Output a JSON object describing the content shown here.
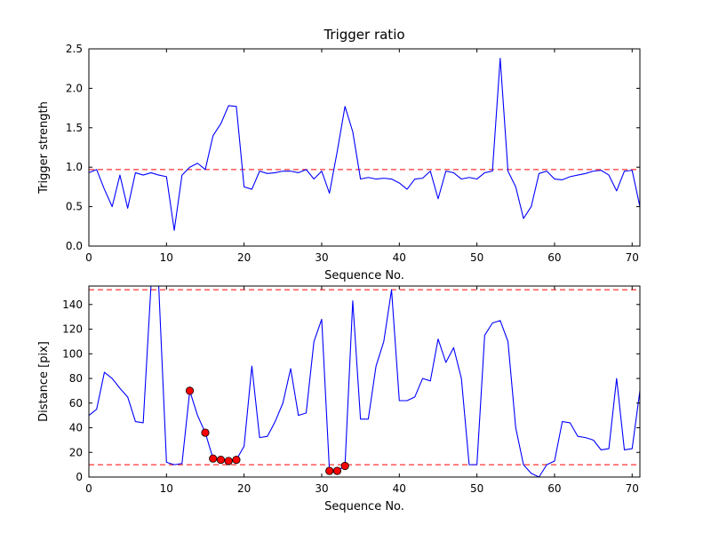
{
  "figure": {
    "background": "#ffffff",
    "axes_color": "#000000",
    "line_color": "#0000ff",
    "threshold_color": "#ff0000",
    "marker_color": "#ff0000"
  },
  "chart_data": [
    {
      "type": "line",
      "title": "Trigger ratio",
      "xlabel": "Sequence No.",
      "ylabel": "Trigger strength",
      "xlim": [
        0,
        71
      ],
      "ylim": [
        0,
        2.5
      ],
      "xticks": [
        0,
        10,
        20,
        30,
        40,
        50,
        60,
        70
      ],
      "xtick_labels": [
        "0",
        "10",
        "20",
        "30",
        "40",
        "50",
        "60",
        "70"
      ],
      "yticks": [
        0.0,
        0.5,
        1.0,
        1.5,
        2.0,
        2.5
      ],
      "ytick_labels": [
        "0.0",
        "0.5",
        "1.0",
        "1.5",
        "2.0",
        "2.5"
      ],
      "grid": false,
      "legend": null,
      "line_color": "#0000ff",
      "thresholds": [
        {
          "y": 0.97,
          "color": "#ff0000",
          "style": "dashed"
        }
      ],
      "x": [
        0,
        1,
        2,
        3,
        4,
        5,
        6,
        7,
        8,
        9,
        10,
        11,
        12,
        13,
        14,
        15,
        16,
        17,
        18,
        19,
        20,
        21,
        22,
        23,
        24,
        25,
        26,
        27,
        28,
        29,
        30,
        31,
        32,
        33,
        34,
        35,
        36,
        37,
        38,
        39,
        40,
        41,
        42,
        43,
        44,
        45,
        46,
        47,
        48,
        49,
        50,
        51,
        52,
        53,
        54,
        55,
        56,
        57,
        58,
        59,
        60,
        61,
        62,
        63,
        64,
        65,
        66,
        67,
        68,
        69,
        70,
        71
      ],
      "y": [
        0.93,
        0.97,
        0.72,
        0.5,
        0.9,
        0.48,
        0.93,
        0.9,
        0.93,
        0.9,
        0.88,
        0.2,
        0.9,
        1.0,
        1.05,
        0.97,
        1.4,
        1.55,
        1.78,
        1.77,
        0.75,
        0.72,
        0.95,
        0.92,
        0.93,
        0.95,
        0.95,
        0.93,
        0.97,
        0.85,
        0.95,
        0.67,
        1.2,
        1.77,
        1.45,
        0.85,
        0.87,
        0.85,
        0.86,
        0.85,
        0.8,
        0.72,
        0.85,
        0.86,
        0.95,
        0.6,
        0.95,
        0.93,
        0.85,
        0.87,
        0.85,
        0.93,
        0.95,
        2.38,
        0.95,
        0.75,
        0.35,
        0.5,
        0.92,
        0.95,
        0.85,
        0.84,
        0.88,
        0.9,
        0.92,
        0.95,
        0.96,
        0.9,
        0.7,
        0.95,
        0.96,
        0.5
      ]
    },
    {
      "type": "line",
      "title": "",
      "xlabel": "Sequence No.",
      "ylabel": "Distance [pix]",
      "xlim": [
        0,
        71
      ],
      "ylim": [
        0,
        155
      ],
      "xticks": [
        0,
        10,
        20,
        30,
        40,
        50,
        60,
        70
      ],
      "xtick_labels": [
        "0",
        "10",
        "20",
        "30",
        "40",
        "50",
        "60",
        "70"
      ],
      "yticks": [
        0,
        20,
        40,
        60,
        80,
        100,
        120,
        140
      ],
      "ytick_labels": [
        "0",
        "20",
        "40",
        "60",
        "80",
        "100",
        "120",
        "140"
      ],
      "grid": false,
      "legend": null,
      "line_color": "#0000ff",
      "thresholds": [
        {
          "y": 10,
          "color": "#ff0000",
          "style": "dashed"
        },
        {
          "y": 152,
          "color": "#ff0000",
          "style": "dashed"
        }
      ],
      "x": [
        0,
        1,
        2,
        3,
        4,
        5,
        6,
        7,
        8,
        9,
        10,
        11,
        12,
        13,
        14,
        15,
        16,
        17,
        18,
        19,
        20,
        21,
        22,
        23,
        24,
        25,
        26,
        27,
        28,
        29,
        30,
        31,
        32,
        33,
        34,
        35,
        36,
        37,
        38,
        39,
        40,
        41,
        42,
        43,
        44,
        45,
        46,
        47,
        48,
        49,
        50,
        51,
        52,
        53,
        54,
        55,
        56,
        57,
        58,
        59,
        60,
        61,
        62,
        63,
        64,
        65,
        66,
        67,
        68,
        69,
        70,
        71
      ],
      "y": [
        50,
        55,
        85,
        80,
        72,
        65,
        45,
        44,
        160,
        155,
        12,
        10,
        11,
        70,
        50,
        36,
        15,
        14,
        13,
        14,
        25,
        90,
        32,
        33,
        45,
        60,
        88,
        50,
        52,
        110,
        128,
        5,
        5,
        9,
        143,
        47,
        47,
        90,
        110,
        152,
        62,
        62,
        65,
        80,
        78,
        112,
        93,
        105,
        80,
        10,
        10,
        115,
        125,
        127,
        110,
        40,
        10,
        3,
        0,
        10,
        13,
        45,
        44,
        33,
        32,
        30,
        22,
        23,
        80,
        22,
        23,
        70
      ],
      "markers": {
        "color": "#ff0000",
        "edge_color": "#000000",
        "x": [
          13,
          15,
          16,
          17,
          18,
          19,
          31,
          32,
          33
        ],
        "y": [
          70,
          36,
          15,
          14,
          13,
          14,
          5,
          5,
          9
        ]
      }
    }
  ]
}
